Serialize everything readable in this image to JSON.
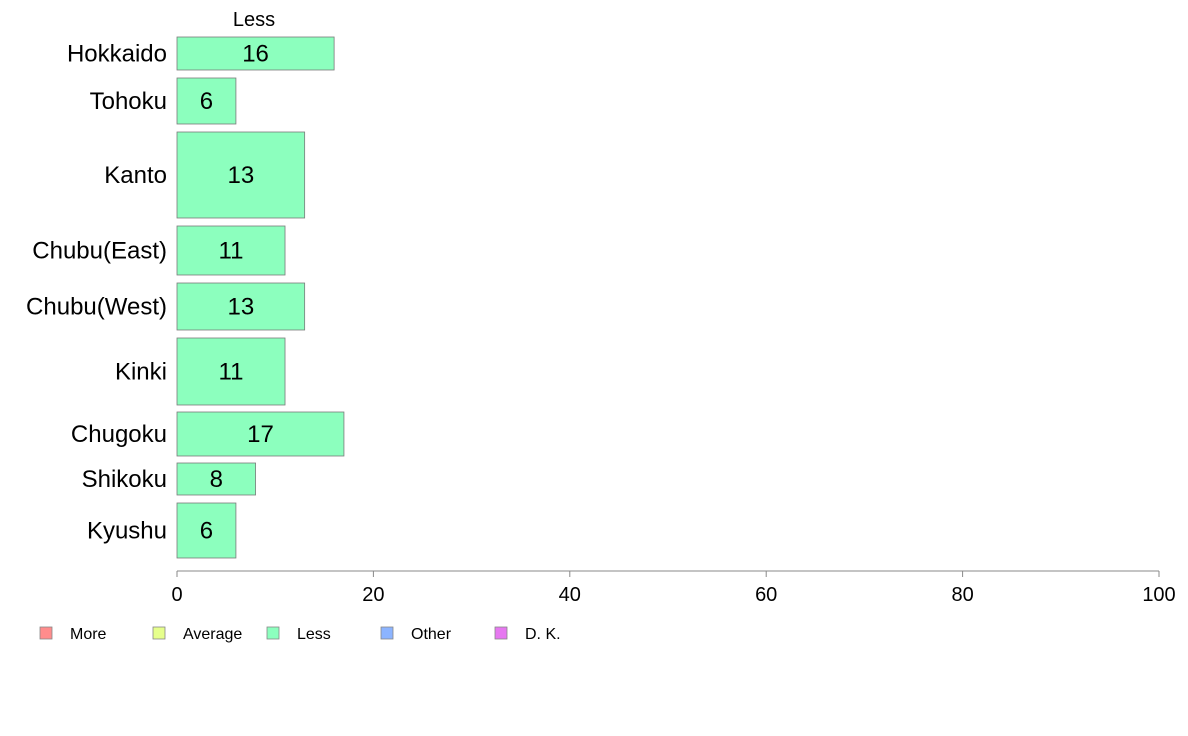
{
  "chart_data": {
    "type": "bar",
    "orientation": "horizontal",
    "column_header": "Less",
    "categories": [
      "Hokkaido",
      "Tohoku",
      "Kanto",
      "Chubu(East)",
      "Chubu(West)",
      "Kinki",
      "Chugoku",
      "Shikoku",
      "Kyushu"
    ],
    "series": [
      {
        "name": "Less",
        "values": [
          16,
          6,
          13,
          11,
          13,
          11,
          17,
          8,
          6
        ],
        "color": "#8cffbe"
      }
    ],
    "xlim": [
      0,
      100
    ],
    "xticks": [
      0,
      20,
      40,
      60,
      80,
      100
    ],
    "xlabel": "",
    "ylabel": "",
    "grid": false,
    "legend_position": "bottom-left",
    "legend": [
      {
        "label": "More",
        "color": "#ff8c8c"
      },
      {
        "label": "Average",
        "color": "#e6ff8c"
      },
      {
        "label": "Less",
        "color": "#8cffbe"
      },
      {
        "label": "Other",
        "color": "#8cb4ff"
      },
      {
        "label": "D. K.",
        "color": "#e678f0"
      }
    ]
  }
}
